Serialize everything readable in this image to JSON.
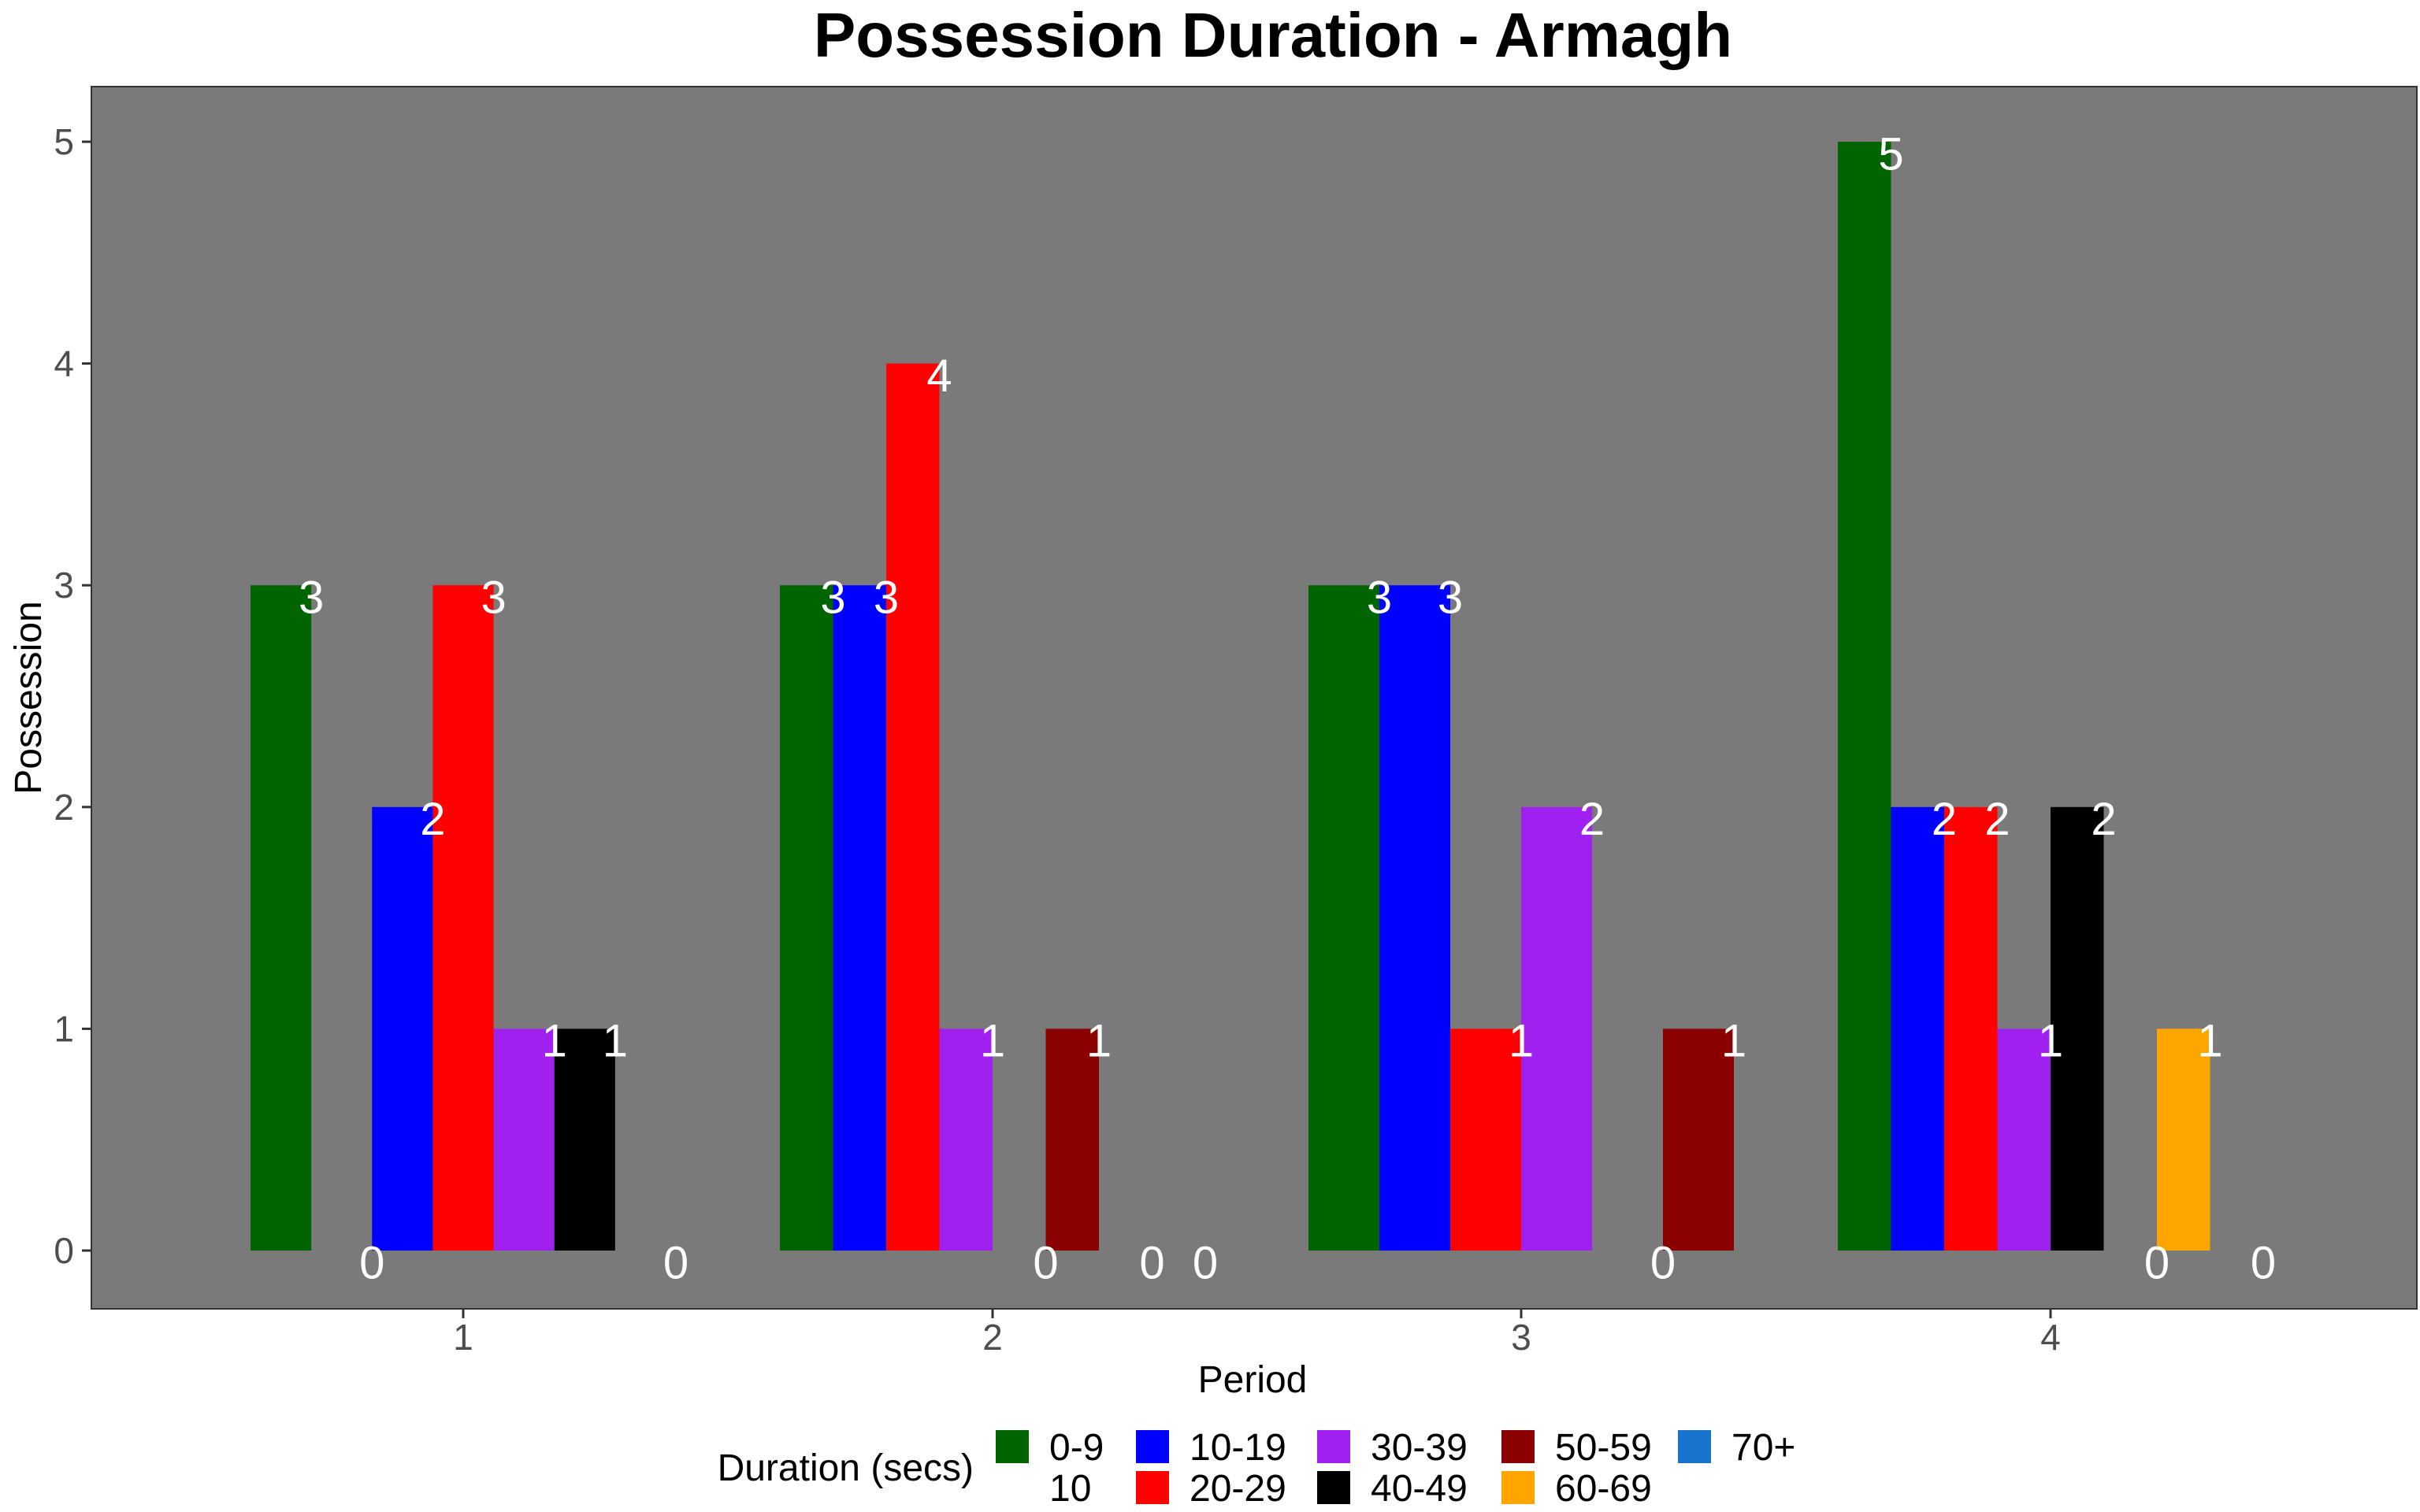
{
  "chart_data": {
    "type": "bar",
    "title": "Possession Duration - Armagh",
    "xlabel": "Period",
    "ylabel": "Possession",
    "ylim": [
      0,
      5
    ],
    "yticks": [
      0,
      1,
      2,
      3,
      4,
      5
    ],
    "grid": false,
    "categories": [
      "1",
      "2",
      "3",
      "4"
    ],
    "legend": {
      "title": "Duration (secs)",
      "placement": "bottom",
      "items": [
        {
          "label": "0-9",
          "color": "#006400"
        },
        {
          "label": "10",
          "color": "#006400"
        },
        {
          "label": "10-19",
          "color": "#0000ff"
        },
        {
          "label": "20-29",
          "color": "#ff0000"
        },
        {
          "label": "30-39",
          "color": "#a020f0"
        },
        {
          "label": "40-49",
          "color": "#000000"
        },
        {
          "label": "50-59",
          "color": "#8b0000"
        },
        {
          "label": "60-69",
          "color": "#ffa500"
        },
        {
          "label": "70+",
          "color": "#1874cd"
        }
      ]
    },
    "panel_color": "#7a7a7a",
    "period_bars": [
      [
        {
          "value": 3,
          "color": "#006400"
        },
        {
          "value": 0,
          "color": "#006400"
        },
        {
          "value": 2,
          "color": "#0000ff"
        },
        {
          "value": 3,
          "color": "#ff0000"
        },
        {
          "value": 1,
          "color": "#a020f0"
        },
        {
          "value": 1,
          "color": "#000000"
        },
        {
          "value": 0,
          "color": "#8b0000"
        }
      ],
      [
        {
          "value": 3,
          "color": "#006400"
        },
        {
          "value": 3,
          "color": "#0000ff"
        },
        {
          "value": 4,
          "color": "#ff0000"
        },
        {
          "value": 1,
          "color": "#a020f0"
        },
        {
          "value": 0,
          "color": "#000000"
        },
        {
          "value": 1,
          "color": "#8b0000"
        },
        {
          "value": 0,
          "color": "#ffa500"
        },
        {
          "value": 0,
          "color": "#1874cd"
        }
      ],
      [
        {
          "value": 3,
          "color": "#006400"
        },
        {
          "value": 3,
          "color": "#0000ff"
        },
        {
          "value": 1,
          "color": "#ff0000"
        },
        {
          "value": 2,
          "color": "#a020f0"
        },
        {
          "value": 0,
          "color": "#000000"
        },
        {
          "value": 1,
          "color": "#8b0000"
        }
      ],
      [
        {
          "value": 5,
          "color": "#006400"
        },
        {
          "value": 2,
          "color": "#0000ff"
        },
        {
          "value": 2,
          "color": "#ff0000"
        },
        {
          "value": 1,
          "color": "#a020f0"
        },
        {
          "value": 2,
          "color": "#000000"
        },
        {
          "value": 0,
          "color": "#8b0000"
        },
        {
          "value": 1,
          "color": "#ffa500"
        },
        {
          "value": 0,
          "color": "#1874cd"
        }
      ]
    ]
  }
}
